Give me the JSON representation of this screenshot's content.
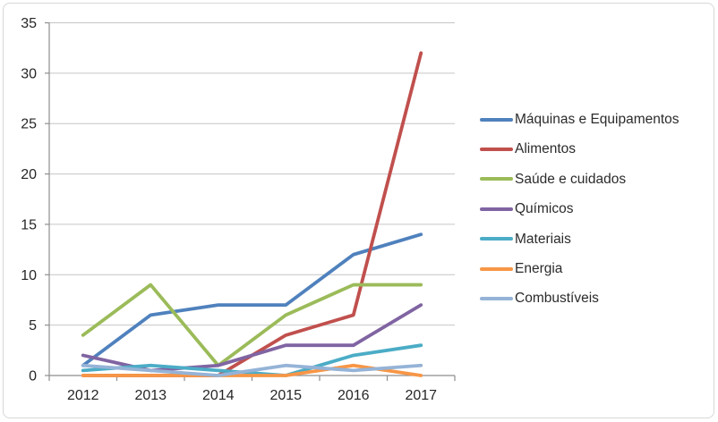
{
  "chart": {
    "background_color": "#ffffff",
    "border_color": "#d7d7d7",
    "gridline_color": "#c6c6c6",
    "axis_line_color": "#8e8e8e",
    "tick_color": "#8e8e8e",
    "axis_text_color": "#262626",
    "legend_text_color": "#2b2b2b"
  },
  "chart_data": {
    "type": "line",
    "title": "",
    "xlabel": "",
    "ylabel": "",
    "categories": [
      "2012",
      "2013",
      "2014",
      "2015",
      "2016",
      "2017"
    ],
    "series": [
      {
        "name": "Máquinas e Equipamentos",
        "color": "#4F81BD",
        "values": [
          1,
          6,
          7,
          7,
          12,
          14
        ]
      },
      {
        "name": "Alimentos",
        "color": "#C0504D",
        "values": [
          0,
          0,
          0,
          4,
          6,
          32
        ]
      },
      {
        "name": "Saúde e cuidados",
        "color": "#9BBB59",
        "values": [
          4,
          9,
          1,
          6,
          9,
          9
        ]
      },
      {
        "name": "Químicos",
        "color": "#8064A2",
        "values": [
          2,
          0.5,
          1,
          3,
          3,
          7
        ]
      },
      {
        "name": "Materiais",
        "color": "#4BACC6",
        "values": [
          0.5,
          1,
          0.5,
          0,
          2,
          3
        ]
      },
      {
        "name": "Energia",
        "color": "#F79646",
        "values": [
          0,
          0,
          0,
          0,
          1,
          0
        ]
      },
      {
        "name": "Combustíveis",
        "color": "#95B3D7",
        "values": [
          1,
          0.5,
          0,
          1,
          0.5,
          1
        ]
      }
    ],
    "ylim": [
      0,
      35
    ],
    "yticks": [
      0,
      5,
      10,
      15,
      20,
      25,
      30,
      35
    ],
    "grid": true,
    "legend_position": "right"
  }
}
